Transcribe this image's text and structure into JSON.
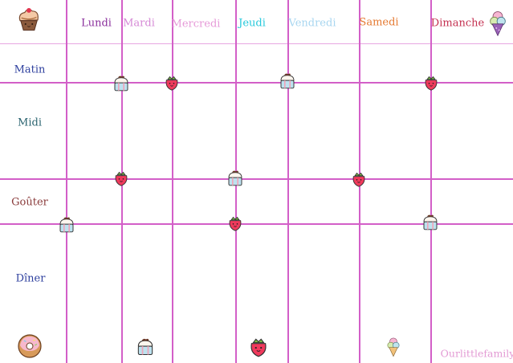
{
  "days": [
    {
      "label": "Lundi",
      "color": "#8a2e9c"
    },
    {
      "label": "Mardi",
      "color": "#d68ad6"
    },
    {
      "label": "Mercredi",
      "color": "#e69ad8"
    },
    {
      "label": "Jeudi",
      "color": "#27c9dc"
    },
    {
      "label": "Vendredi",
      "color": "#a8d6f0"
    },
    {
      "label": "Samedi",
      "color": "#e57a32"
    },
    {
      "label": "Dimanche",
      "color": "#c43050"
    }
  ],
  "meals": [
    {
      "label": "Matin",
      "color": "#2d3f9e"
    },
    {
      "label": "Midi",
      "color": "#2b6470"
    },
    {
      "label": "Goûter",
      "color": "#8a3b3b"
    },
    {
      "label": "Dîner",
      "color": "#2d3f9e"
    }
  ],
  "footer": {
    "brand": "Ourlittlefamily",
    "brand_color": "#e39ad4"
  },
  "grid_color": "#d35fc8",
  "icons": {
    "cupcake": "cupcake-icon",
    "strawberry": "strawberry-icon",
    "donut": "donut-icon",
    "ice_cream": "ice-cream-icon"
  }
}
